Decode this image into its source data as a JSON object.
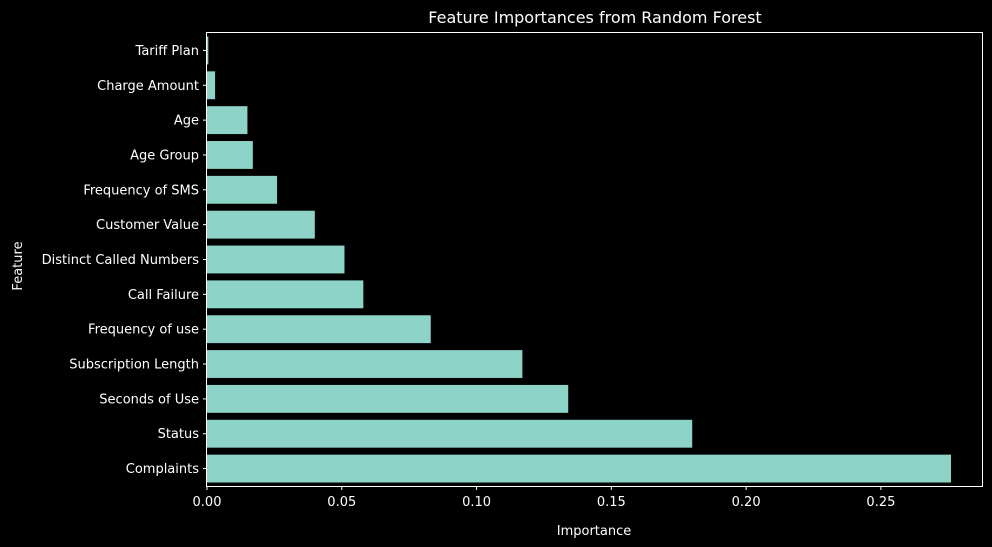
{
  "chart_data": {
    "type": "bar",
    "orientation": "horizontal",
    "title": "Feature Importances from Random Forest",
    "xlabel": "Importance",
    "ylabel": "Feature",
    "categories": [
      "Complaints",
      "Status",
      "Seconds of Use",
      "Subscription Length",
      "Frequency of use",
      "Call Failure",
      "Distinct Called Numbers",
      "Customer Value",
      "Frequency of SMS",
      "Age Group",
      "Age",
      "Charge Amount",
      "Tariff Plan"
    ],
    "values": [
      0.276,
      0.18,
      0.134,
      0.117,
      0.083,
      0.058,
      0.051,
      0.04,
      0.026,
      0.017,
      0.015,
      0.003,
      0.0005
    ],
    "xlim": [
      0,
      0.2875
    ],
    "xticks": [
      0.0,
      0.05,
      0.1,
      0.15,
      0.2,
      0.25
    ],
    "xtick_labels": [
      "0.00",
      "0.05",
      "0.10",
      "0.15",
      "0.20",
      "0.25"
    ],
    "grid": false,
    "colors": {
      "background": "#000000",
      "bar": "#8dd3c7",
      "text": "#ffffff",
      "axes": "#ffffff"
    }
  }
}
